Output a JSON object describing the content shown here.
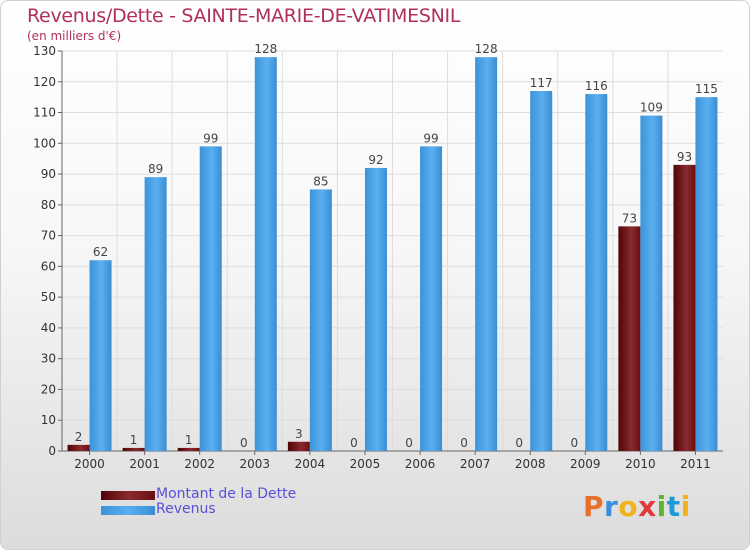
{
  "chart_data": {
    "type": "bar",
    "title": "Revenus/Dette - SAINTE-MARIE-DE-VATIMESNIL",
    "ylabel": "(en milliers d'€)",
    "xlabel": "",
    "ylim": [
      0,
      130
    ],
    "yticks": [
      0,
      10,
      20,
      30,
      40,
      50,
      60,
      70,
      80,
      90,
      100,
      110,
      120,
      130
    ],
    "grid": true,
    "categories": [
      "2000",
      "2001",
      "2002",
      "2003",
      "2004",
      "2005",
      "2006",
      "2007",
      "2008",
      "2009",
      "2010",
      "2011"
    ],
    "series": [
      {
        "name": "Montant de la Dette",
        "color": "#7a0e12",
        "values": [
          2,
          1,
          1,
          0,
          3,
          0,
          0,
          0,
          0,
          0,
          73,
          93
        ]
      },
      {
        "name": "Revenus",
        "color": "#4a9fe0",
        "values": [
          62,
          89,
          99,
          128,
          85,
          92,
          99,
          128,
          117,
          116,
          109,
          115
        ]
      }
    ],
    "legend": "bottom-left"
  },
  "logo": {
    "text": "Proxiti",
    "colors": [
      "#e8702a",
      "#3a8fd8",
      "#f2b21b",
      "#e23a3a",
      "#5bb531",
      "#1d9bd8",
      "#f2b21b"
    ]
  }
}
